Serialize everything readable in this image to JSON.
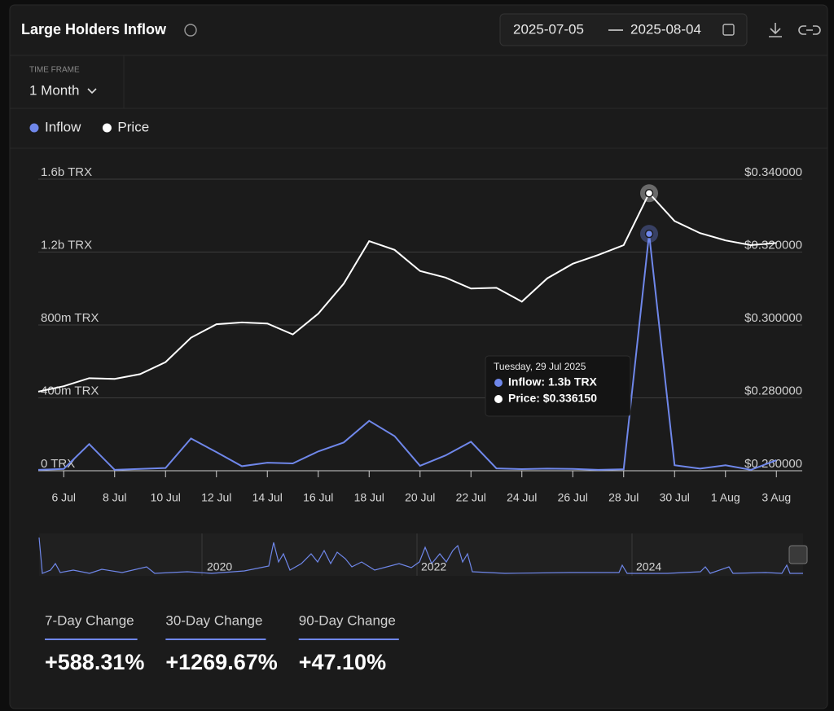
{
  "header": {
    "title": "Large Holders Inflow",
    "date_start": "2025-07-05",
    "date_end": "2025-08-04",
    "time_frame_label": "TIME FRAME",
    "time_frame": "1 Month"
  },
  "chart_data": {
    "type": "line",
    "categories": [
      null,
      "6 Jul",
      null,
      "8 Jul",
      null,
      "10 Jul",
      null,
      "12 Jul",
      null,
      "14 Jul",
      null,
      "16 Jul",
      null,
      "18 Jul",
      null,
      "20 Jul",
      null,
      "22 Jul",
      null,
      "24 Jul",
      null,
      "26 Jul",
      null,
      "28 Jul",
      null,
      "30 Jul",
      null,
      "1 Aug",
      null,
      "3 Aug"
    ],
    "series": [
      {
        "name": "Inflow",
        "color": "#6f87ea",
        "axis": "y",
        "values": [
          5000000,
          10000000,
          146000000,
          5000000,
          10000000,
          15000000,
          177000000,
          102000000,
          25000000,
          44000000,
          40000000,
          106000000,
          155000000,
          274000000,
          190000000,
          27000000,
          84000000,
          159000000,
          13000000,
          9000000,
          12000000,
          10000000,
          5000000,
          8000000,
          1300000000,
          30000000,
          12000000,
          30000000,
          5000000,
          58000000
        ]
      },
      {
        "name": "Price",
        "color": "#ffffff",
        "axis": "y2",
        "values": [
          0.2817,
          0.2832,
          0.2854,
          0.2852,
          0.2865,
          0.2898,
          0.2965,
          0.3002,
          0.3007,
          0.3004,
          0.2974,
          0.3031,
          0.3113,
          0.323,
          0.3206,
          0.3148,
          0.313,
          0.31,
          0.3102,
          0.3064,
          0.3128,
          0.3168,
          0.3192,
          0.3219,
          0.33615,
          0.3285,
          0.3252,
          0.3232,
          0.3219,
          0.3225
        ]
      }
    ],
    "ylim": [
      0,
      1600000000
    ],
    "yticks": [
      {
        "value": 0,
        "label": "0 TRX"
      },
      {
        "value": 400000000,
        "label": "400m TRX"
      },
      {
        "value": 800000000,
        "label": "800m TRX"
      },
      {
        "value": 1200000000,
        "label": "1.2b TRX"
      },
      {
        "value": 1600000000,
        "label": "1.6b TRX"
      }
    ],
    "y2lim": [
      0.26,
      0.34
    ],
    "y2ticks": [
      {
        "value": 0.26,
        "label": "$0.260000"
      },
      {
        "value": 0.28,
        "label": "$0.280000"
      },
      {
        "value": 0.3,
        "label": "$0.300000"
      },
      {
        "value": 0.32,
        "label": "$0.320000"
      },
      {
        "value": 0.34,
        "label": "$0.340000"
      }
    ],
    "grid": true,
    "legend": "top-left",
    "tooltip": {
      "title": "Tuesday, 29 Jul 2025",
      "lines": [
        "Inflow: 1.3b TRX",
        "Price: $0.336150"
      ]
    }
  },
  "navigator": {
    "labels": [
      "2020",
      "2022",
      "2024"
    ]
  },
  "stats": [
    {
      "label": "7-Day Change",
      "value": "+588.31%"
    },
    {
      "label": "30-Day Change",
      "value": "+1269.67%"
    },
    {
      "label": "90-Day Change",
      "value": "+47.10%"
    }
  ]
}
